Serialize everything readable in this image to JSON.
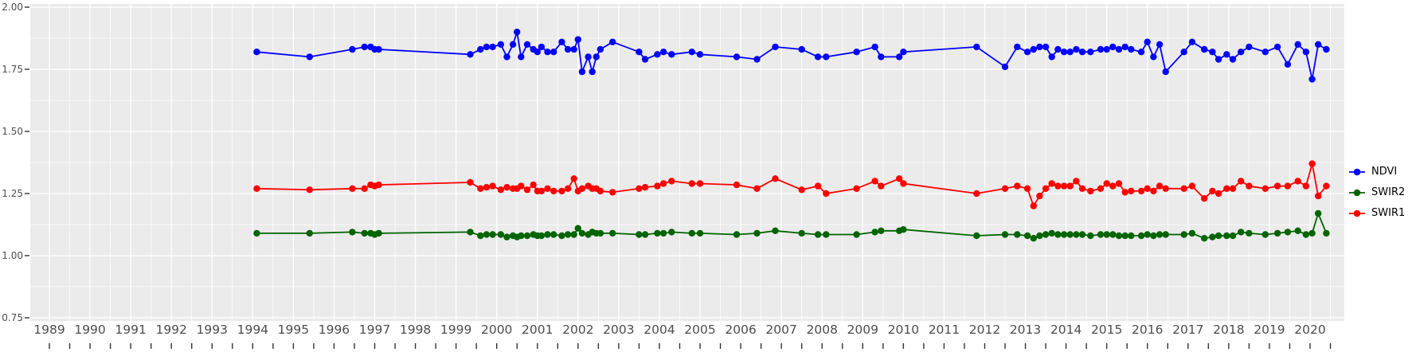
{
  "chart_data": {
    "type": "line",
    "title": "",
    "xlabel": "",
    "ylabel": "",
    "panel_bg": "#EBEBEB",
    "grid_color": "#FFFFFF",
    "axis_text_color": "#4d4d4d",
    "tick_color": "#333333",
    "legend_position": "right",
    "x_domain": [
      1988.5,
      2020.9
    ],
    "y_domain": [
      0.75,
      2.0
    ],
    "y_ticks": [
      "0.75",
      "1.00",
      "1.25",
      "1.50",
      "1.75",
      "2.00"
    ],
    "y_tick_values": [
      0.75,
      1.0,
      1.25,
      1.5,
      1.75,
      2.0
    ],
    "y_minor_values": [
      0.875,
      1.125,
      1.375,
      1.625,
      1.875
    ],
    "x_ticks": [
      "1989",
      "1990",
      "1991",
      "1992",
      "1993",
      "1994",
      "1995",
      "1996",
      "1997",
      "1998",
      "1999",
      "2000",
      "2001",
      "2002",
      "2003",
      "2004",
      "2005",
      "2006",
      "2007",
      "2008",
      "2009",
      "2010",
      "2011",
      "2012",
      "2013",
      "2014",
      "2015",
      "2016",
      "2017",
      "2018",
      "2019",
      "2020"
    ],
    "x_tick_values": [
      1989,
      1990,
      1991,
      1992,
      1993,
      1994,
      1995,
      1996,
      1997,
      1998,
      1999,
      2000,
      2001,
      2002,
      2003,
      2004,
      2005,
      2006,
      2007,
      2008,
      2009,
      2010,
      2011,
      2012,
      2013,
      2014,
      2015,
      2016,
      2017,
      2018,
      2019,
      2020
    ],
    "x": [
      1994.1,
      1995.4,
      1996.45,
      1996.75,
      1996.9,
      1997.0,
      1997.1,
      1999.35,
      1999.6,
      1999.75,
      1999.9,
      2000.1,
      2000.25,
      2000.4,
      2000.5,
      2000.6,
      2000.75,
      2000.9,
      2001.0,
      2001.1,
      2001.25,
      2001.4,
      2001.6,
      2001.75,
      2001.9,
      2002.0,
      2002.1,
      2002.25,
      2002.35,
      2002.45,
      2002.55,
      2002.85,
      2003.5,
      2003.65,
      2003.95,
      2004.1,
      2004.3,
      2004.8,
      2005.0,
      2005.9,
      2006.4,
      2006.85,
      2007.5,
      2007.9,
      2008.1,
      2008.85,
      2009.3,
      2009.45,
      2009.9,
      2010.0,
      2011.8,
      2012.5,
      2012.8,
      2013.05,
      2013.2,
      2013.35,
      2013.5,
      2013.65,
      2013.8,
      2013.95,
      2014.1,
      2014.25,
      2014.4,
      2014.6,
      2014.85,
      2015.0,
      2015.15,
      2015.3,
      2015.45,
      2015.6,
      2015.85,
      2016.0,
      2016.15,
      2016.3,
      2016.45,
      2016.9,
      2017.1,
      2017.4,
      2017.6,
      2017.75,
      2017.95,
      2018.1,
      2018.3,
      2018.5,
      2018.9,
      2019.2,
      2019.45,
      2019.7,
      2019.9,
      2020.05,
      2020.2,
      2020.4
    ],
    "series": [
      {
        "name": "NDVI",
        "color": "#0000ff",
        "values": [
          1.82,
          1.8,
          1.83,
          1.84,
          1.84,
          1.83,
          1.83,
          1.81,
          1.83,
          1.84,
          1.84,
          1.85,
          1.8,
          1.85,
          1.9,
          1.8,
          1.85,
          1.83,
          1.82,
          1.84,
          1.82,
          1.82,
          1.86,
          1.83,
          1.83,
          1.87,
          1.74,
          1.8,
          1.74,
          1.8,
          1.83,
          1.86,
          1.82,
          1.79,
          1.81,
          1.82,
          1.81,
          1.82,
          1.81,
          1.8,
          1.79,
          1.84,
          1.83,
          1.8,
          1.8,
          1.82,
          1.84,
          1.8,
          1.8,
          1.82,
          1.84,
          1.76,
          1.84,
          1.82,
          1.83,
          1.84,
          1.84,
          1.8,
          1.83,
          1.82,
          1.82,
          1.83,
          1.82,
          1.82,
          1.83,
          1.83,
          1.84,
          1.83,
          1.84,
          1.83,
          1.82,
          1.86,
          1.8,
          1.85,
          1.74,
          1.82,
          1.86,
          1.83,
          1.82,
          1.79,
          1.81,
          1.79,
          1.82,
          1.84,
          1.82,
          1.84,
          1.77,
          1.85,
          1.82,
          1.71,
          1.85,
          1.83
        ]
      },
      {
        "name": "SWIR2",
        "color": "#006400",
        "values": [
          1.09,
          1.09,
          1.095,
          1.09,
          1.09,
          1.085,
          1.09,
          1.095,
          1.08,
          1.085,
          1.085,
          1.085,
          1.075,
          1.08,
          1.075,
          1.08,
          1.08,
          1.085,
          1.08,
          1.08,
          1.085,
          1.085,
          1.08,
          1.085,
          1.085,
          1.11,
          1.09,
          1.085,
          1.095,
          1.09,
          1.09,
          1.09,
          1.085,
          1.085,
          1.09,
          1.09,
          1.095,
          1.09,
          1.09,
          1.085,
          1.09,
          1.1,
          1.09,
          1.085,
          1.085,
          1.085,
          1.095,
          1.1,
          1.1,
          1.105,
          1.08,
          1.085,
          1.085,
          1.08,
          1.07,
          1.08,
          1.085,
          1.09,
          1.085,
          1.085,
          1.085,
          1.085,
          1.085,
          1.08,
          1.085,
          1.085,
          1.085,
          1.08,
          1.08,
          1.08,
          1.08,
          1.085,
          1.08,
          1.085,
          1.085,
          1.085,
          1.09,
          1.07,
          1.075,
          1.08,
          1.08,
          1.08,
          1.095,
          1.09,
          1.085,
          1.09,
          1.095,
          1.1,
          1.085,
          1.09,
          1.17,
          1.09
        ]
      },
      {
        "name": "SWIR1",
        "color": "#ff0000",
        "values": [
          1.27,
          1.265,
          1.27,
          1.27,
          1.285,
          1.28,
          1.285,
          1.295,
          1.27,
          1.275,
          1.28,
          1.265,
          1.275,
          1.27,
          1.27,
          1.28,
          1.265,
          1.285,
          1.26,
          1.26,
          1.27,
          1.26,
          1.26,
          1.27,
          1.31,
          1.26,
          1.27,
          1.28,
          1.27,
          1.27,
          1.26,
          1.255,
          1.27,
          1.275,
          1.28,
          1.29,
          1.3,
          1.29,
          1.29,
          1.285,
          1.27,
          1.31,
          1.265,
          1.28,
          1.25,
          1.27,
          1.3,
          1.28,
          1.31,
          1.29,
          1.25,
          1.27,
          1.28,
          1.27,
          1.2,
          1.24,
          1.27,
          1.29,
          1.28,
          1.28,
          1.28,
          1.3,
          1.27,
          1.26,
          1.27,
          1.29,
          1.28,
          1.29,
          1.255,
          1.26,
          1.26,
          1.27,
          1.26,
          1.28,
          1.27,
          1.27,
          1.28,
          1.23,
          1.26,
          1.25,
          1.27,
          1.27,
          1.3,
          1.28,
          1.27,
          1.28,
          1.28,
          1.3,
          1.28,
          1.37,
          1.24,
          1.28
        ]
      }
    ]
  },
  "legend": {
    "items": [
      {
        "label": "NDVI",
        "color": "#0000ff"
      },
      {
        "label": "SWIR2",
        "color": "#006400"
      },
      {
        "label": "SWIR1",
        "color": "#ff0000"
      }
    ]
  }
}
